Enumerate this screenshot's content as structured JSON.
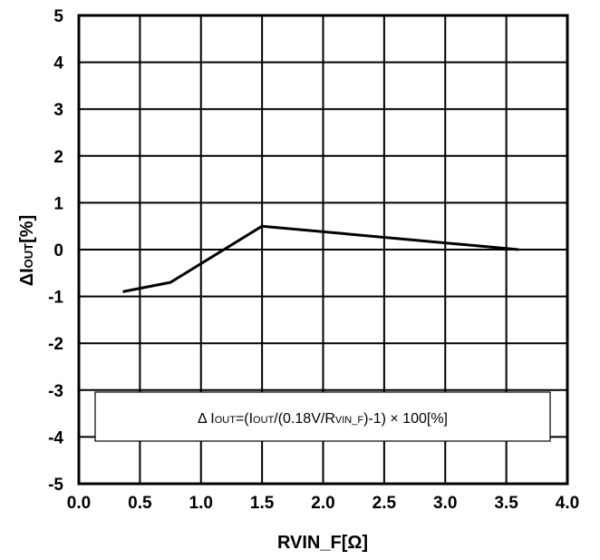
{
  "chart_data": {
    "type": "line",
    "xlabel": "RVIN_F[Ω]",
    "ylabel": {
      "main": "ΔI",
      "sub": "OUT",
      "tail": "[%]"
    },
    "xlim": [
      0.0,
      4.0
    ],
    "ylim": [
      -5,
      5
    ],
    "x_ticks": [
      "0.0",
      "0.5",
      "1.0",
      "1.5",
      "2.0",
      "2.5",
      "3.0",
      "3.5",
      "4.0"
    ],
    "y_ticks": [
      "5",
      "4",
      "3",
      "2",
      "1",
      "0",
      "-1",
      "-2",
      "-3",
      "-4",
      "-5"
    ],
    "grid": true,
    "series": [
      {
        "x": [
          0.36,
          0.75,
          1.5,
          3.6
        ],
        "y": [
          -0.9,
          -0.7,
          0.5,
          0.0
        ],
        "color": "#000000"
      }
    ],
    "annotation": {
      "p1": "Δ I",
      "p2": "OUT",
      "p3": "=(I",
      "p4": "OUT",
      "p5": "/(0.18V/R",
      "p6": "VIN_F",
      "p7": ")-1) × 100[%]"
    }
  }
}
